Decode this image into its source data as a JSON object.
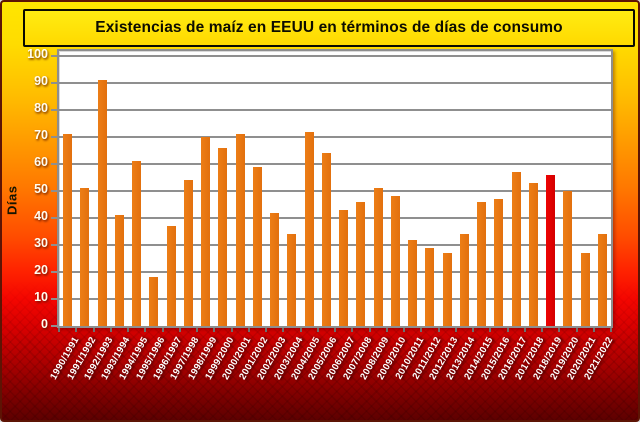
{
  "title": "Existencias de maíz en EEUU en términos de días de consumo",
  "colors": {
    "bar": "#E2700E",
    "highlight_bar": "#EE0202",
    "grid": "#8F8F8F",
    "plot_background": "#FFFFFF",
    "title_background": "#FFE600",
    "background_top": "#FFE600",
    "background_bottom": "#5E0000",
    "axis_text": "#FFFFFF",
    "title_text": "#0D0D00"
  },
  "chart_data": {
    "type": "bar",
    "title": "Existencias de maíz en EEUU en términos de días de consumo",
    "xlabel": "",
    "ylabel": "Días",
    "ylim": [
      0,
      100
    ],
    "yticks": [
      0,
      10,
      20,
      30,
      40,
      50,
      60,
      70,
      80,
      90,
      100
    ],
    "grid": true,
    "legend": false,
    "categories": [
      "1990/1991",
      "1991/1992",
      "1992/1993",
      "1993/1994",
      "1994/1995",
      "1995/1996",
      "1996/1997",
      "1997/1998",
      "1998/1999",
      "1999/2000",
      "2000/2001",
      "2001/2002",
      "2002/2003",
      "2003/2004",
      "2004/2005",
      "2005/2006",
      "2006/2007",
      "2007/2008",
      "2008/2009",
      "2009/2010",
      "2010/2011",
      "2011/2012",
      "2012/2013",
      "2013/2014",
      "2014/2015",
      "2015/2016",
      "2016/2017",
      "2017/2018",
      "2018/2019",
      "2019/2020",
      "2020/2021",
      "2021/2022"
    ],
    "values": [
      71,
      51,
      91,
      41,
      61,
      18,
      37,
      54,
      70,
      66,
      71,
      59,
      42,
      34,
      72,
      64,
      43,
      46,
      51,
      48,
      32,
      29,
      27,
      34,
      46,
      47,
      57,
      53,
      56,
      50,
      27,
      34
    ],
    "highlight_category": "2018/2019",
    "bar_color": "#E2700E",
    "highlight_color": "#EE0202"
  }
}
